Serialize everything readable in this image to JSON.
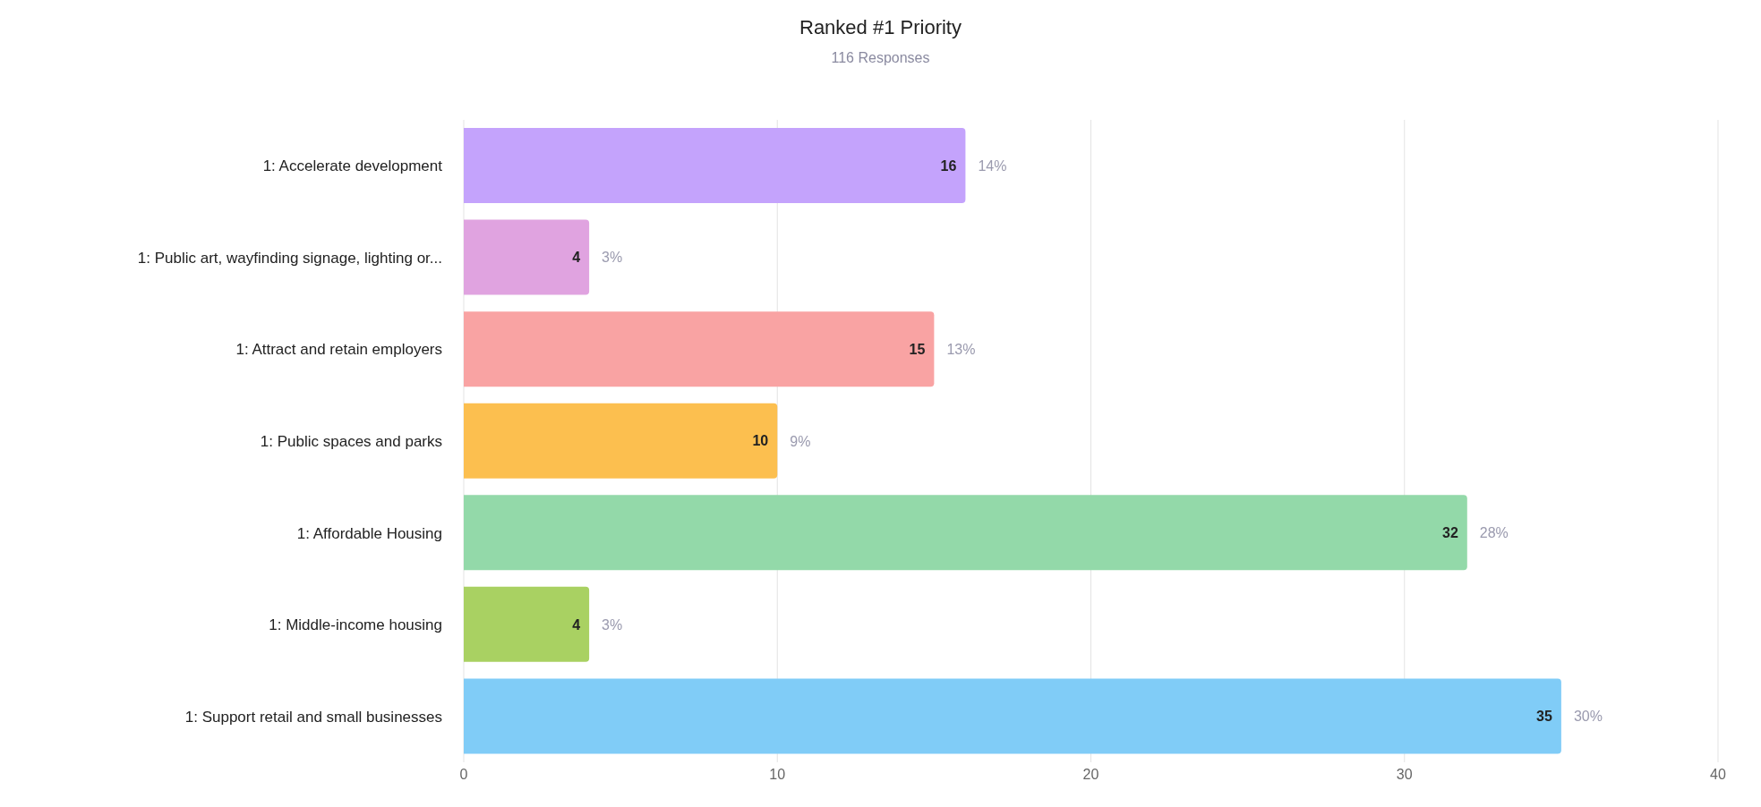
{
  "chart_data": {
    "type": "bar",
    "orientation": "horizontal",
    "title": "Ranked #1 Priority",
    "subtitle": "116 Responses",
    "categories": [
      "1: Accelerate development",
      "1: Public art, wayfinding signage, lighting or...",
      "1: Attract and retain employers",
      "1: Public spaces and parks",
      "1: Affordable Housing",
      "1: Middle-income housing",
      "1: Support retail and small businesses"
    ],
    "values": [
      16,
      4,
      15,
      10,
      32,
      4,
      35
    ],
    "colors": [
      "#c4a3fc",
      "#e0a3e0",
      "#f9a3a3",
      "#fcbf4f",
      "#93d9a9",
      "#a9d162",
      "#80ccf7"
    ],
    "xlim": [
      0,
      40
    ],
    "xticks": [
      0,
      10,
      20,
      30,
      40
    ],
    "grid": "x",
    "data_labels": true,
    "legend": false,
    "annotations": [
      {
        "text": "14%",
        "x": 16,
        "y": "1: Accelerate development"
      },
      {
        "text": "3%",
        "x": 4,
        "y": "1: Public art, wayfinding signage, lighting or..."
      },
      {
        "text": "13%",
        "x": 15,
        "y": "1: Attract and retain employers"
      },
      {
        "text": "9%",
        "x": 10,
        "y": "1: Public spaces and parks"
      },
      {
        "text": "28%",
        "x": 32,
        "y": "1: Affordable Housing"
      },
      {
        "text": "3%",
        "x": 4,
        "y": "1: Middle-income housing"
      },
      {
        "text": "30%",
        "x": 35,
        "y": "1: Support retail and small businesses"
      }
    ]
  }
}
